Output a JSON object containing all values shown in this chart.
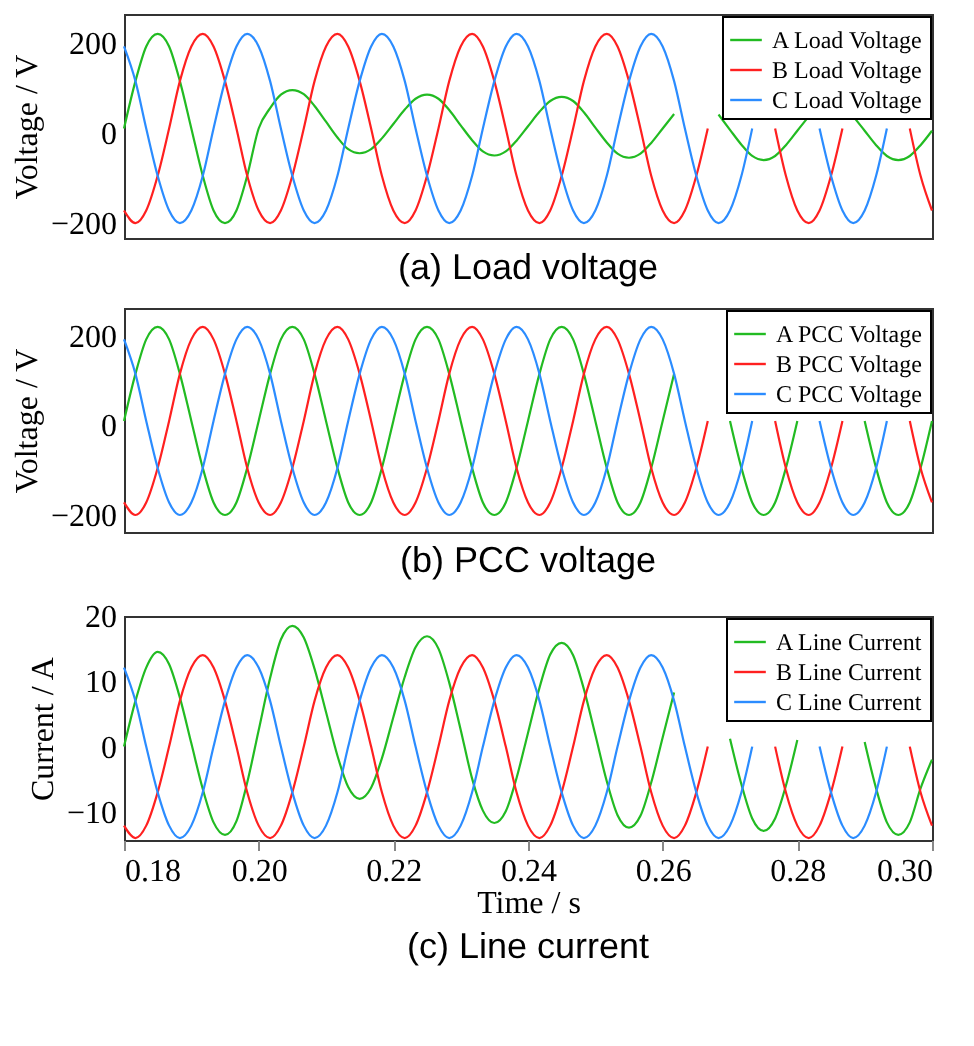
{
  "chart_data": [
    {
      "type": "line",
      "title": "(a) Load voltage",
      "ylabel": "Voltage / V",
      "xlim": [
        0.18,
        0.3
      ],
      "ylim": [
        -233,
        264
      ],
      "yticks": [
        -200,
        0,
        200
      ],
      "tick_labels": "y",
      "legend": "top right",
      "x": [
        0.18,
        0.1817,
        0.1833,
        0.185,
        0.1867,
        0.1883,
        0.19,
        0.1917,
        0.1933,
        0.195,
        0.1967,
        0.1983,
        0.2,
        0.2017,
        0.2033,
        0.205,
        0.2067,
        0.2083,
        0.21,
        0.2117,
        0.2133,
        0.215,
        0.2167,
        0.2183,
        0.22,
        0.2217,
        0.2233,
        0.225,
        0.2267,
        0.2283,
        0.23,
        0.2317,
        0.2333,
        0.235,
        0.2367,
        0.2383,
        0.24,
        0.2417,
        0.2433,
        0.245,
        0.2467,
        0.2483,
        0.25,
        0.2517,
        0.2533,
        0.255,
        0.2567,
        0.2583,
        0.26,
        0.2617,
        0.2633,
        0.265,
        0.2667,
        0.2683,
        0.27,
        0.2717,
        0.2733,
        0.275,
        0.2767,
        0.2783,
        0.28,
        0.2817,
        0.2833,
        0.285,
        0.2867,
        0.2883,
        0.29,
        0.2917,
        0.2933,
        0.295,
        0.2967,
        0.2983,
        0.3
      ],
      "series": [
        {
          "name": "A Load Voltage",
          "color": "#22bb22",
          "values": [
            10,
            115,
            192,
            220,
            192,
            115,
            10,
            -95,
            -172,
            -200,
            -172,
            -95,
            10,
            55,
            85,
            95,
            86,
            60,
            25,
            -10,
            -36,
            -45,
            -36,
            -12,
            20,
            52,
            76,
            85,
            76,
            51,
            17,
            -16,
            -41,
            -50,
            -41,
            -17,
            15,
            47,
            71,
            80,
            71,
            46,
            12,
            -21,
            -46,
            -55,
            -46,
            -22,
            10,
            42,
            null,
            null,
            null,
            41,
            7,
            -26,
            -51,
            -60,
            -51,
            -27,
            5,
            37,
            null,
            null,
            null,
            37,
            5,
            -27,
            -51,
            -60,
            -51,
            -27,
            5
          ]
        },
        {
          "name": "B Load Voltage",
          "color": "#ff2020",
          "values": [
            -172,
            -200,
            -172,
            -95,
            10,
            115,
            192,
            220,
            192,
            115,
            10,
            -95,
            -172,
            -200,
            -172,
            -95,
            10,
            115,
            192,
            220,
            192,
            115,
            10,
            -95,
            -172,
            -200,
            -172,
            -95,
            10,
            115,
            192,
            220,
            192,
            115,
            10,
            -95,
            -172,
            -200,
            -172,
            -95,
            10,
            115,
            192,
            220,
            192,
            115,
            10,
            -95,
            -172,
            -200,
            -172,
            -95,
            10,
            null,
            null,
            null,
            null,
            null,
            10,
            -95,
            -172,
            -200,
            -172,
            -95,
            10,
            null,
            null,
            null,
            null,
            null,
            10,
            -95,
            -172
          ]
        },
        {
          "name": "C Load Voltage",
          "color": "#2b8cff",
          "values": [
            192,
            115,
            10,
            -95,
            -172,
            -200,
            -172,
            -95,
            10,
            115,
            192,
            220,
            192,
            115,
            10,
            -95,
            -172,
            -200,
            -172,
            -95,
            10,
            115,
            192,
            220,
            192,
            115,
            10,
            -95,
            -172,
            -200,
            -172,
            -95,
            10,
            115,
            192,
            220,
            192,
            115,
            10,
            -95,
            -172,
            -200,
            -172,
            -95,
            10,
            115,
            192,
            220,
            192,
            115,
            10,
            -95,
            -172,
            -200,
            -172,
            -95,
            10,
            null,
            null,
            null,
            null,
            null,
            10,
            -95,
            -172,
            -200,
            -172,
            -95,
            10,
            null,
            null,
            null,
            null
          ]
        }
      ]
    },
    {
      "type": "line",
      "title": "(b) PCC voltage",
      "ylabel": "Voltage / V",
      "xlim": [
        0.18,
        0.3
      ],
      "ylim": [
        -238,
        262
      ],
      "yticks": [
        -200,
        0,
        200
      ],
      "tick_labels": "y",
      "legend": "top right",
      "x": [
        0.18,
        0.1817,
        0.1833,
        0.185,
        0.1867,
        0.1883,
        0.19,
        0.1917,
        0.1933,
        0.195,
        0.1967,
        0.1983,
        0.2,
        0.2017,
        0.2033,
        0.205,
        0.2067,
        0.2083,
        0.21,
        0.2117,
        0.2133,
        0.215,
        0.2167,
        0.2183,
        0.22,
        0.2217,
        0.2233,
        0.225,
        0.2267,
        0.2283,
        0.23,
        0.2317,
        0.2333,
        0.235,
        0.2367,
        0.2383,
        0.24,
        0.2417,
        0.2433,
        0.245,
        0.2467,
        0.2483,
        0.25,
        0.2517,
        0.2533,
        0.255,
        0.2567,
        0.2583,
        0.26,
        0.2617,
        0.2633,
        0.265,
        0.2667,
        0.2683,
        0.27,
        0.2717,
        0.2733,
        0.275,
        0.2767,
        0.2783,
        0.28,
        0.2817,
        0.2833,
        0.285,
        0.2867,
        0.2883,
        0.29,
        0.2917,
        0.2933,
        0.295,
        0.2967,
        0.2983,
        0.3
      ],
      "series": [
        {
          "name": "A PCC Voltage",
          "color": "#22bb22",
          "values": [
            10,
            115,
            192,
            220,
            192,
            115,
            10,
            -95,
            -172,
            -200,
            -172,
            -95,
            10,
            115,
            192,
            220,
            192,
            115,
            10,
            -95,
            -172,
            -200,
            -172,
            -95,
            10,
            115,
            192,
            220,
            192,
            115,
            10,
            -95,
            -172,
            -200,
            -172,
            -95,
            10,
            115,
            192,
            220,
            192,
            115,
            10,
            -95,
            -172,
            -200,
            -172,
            -95,
            10,
            115,
            null,
            null,
            null,
            null,
            10,
            -95,
            -172,
            -200,
            -172,
            -95,
            10,
            null,
            null,
            null,
            null,
            null,
            10,
            -95,
            -172,
            -200,
            -172,
            -95,
            10
          ]
        },
        {
          "name": "B PCC Voltage",
          "color": "#ff2020",
          "values": [
            -172,
            -200,
            -172,
            -95,
            10,
            115,
            192,
            220,
            192,
            115,
            10,
            -95,
            -172,
            -200,
            -172,
            -95,
            10,
            115,
            192,
            220,
            192,
            115,
            10,
            -95,
            -172,
            -200,
            -172,
            -95,
            10,
            115,
            192,
            220,
            192,
            115,
            10,
            -95,
            -172,
            -200,
            -172,
            -95,
            10,
            115,
            192,
            220,
            192,
            115,
            10,
            -95,
            -172,
            -200,
            -172,
            -95,
            10,
            null,
            null,
            null,
            null,
            null,
            10,
            -95,
            -172,
            -200,
            -172,
            -95,
            10,
            null,
            null,
            null,
            null,
            null,
            10,
            -95,
            -172
          ]
        },
        {
          "name": "C PCC Voltage",
          "color": "#2b8cff",
          "values": [
            192,
            115,
            10,
            -95,
            -172,
            -200,
            -172,
            -95,
            10,
            115,
            192,
            220,
            192,
            115,
            10,
            -95,
            -172,
            -200,
            -172,
            -95,
            10,
            115,
            192,
            220,
            192,
            115,
            10,
            -95,
            -172,
            -200,
            -172,
            -95,
            10,
            115,
            192,
            220,
            192,
            115,
            10,
            -95,
            -172,
            -200,
            -172,
            -95,
            10,
            115,
            192,
            220,
            192,
            115,
            10,
            -95,
            -172,
            -200,
            -172,
            -95,
            10,
            null,
            null,
            null,
            null,
            null,
            10,
            -95,
            -172,
            -200,
            -172,
            -95,
            10,
            null,
            null,
            null,
            null
          ]
        }
      ]
    },
    {
      "type": "line",
      "title": "(c) Line current",
      "xlabel": "Time / s",
      "ylabel": "Current / A",
      "xlim": [
        0.18,
        0.3
      ],
      "xticks": [
        0.18,
        {
          "value": 0.2,
          "label": "0.20"
        },
        0.22,
        0.24,
        0.26,
        0.28,
        {
          "value": 0.3,
          "label": "0.30"
        }
      ],
      "ylim": [
        -14.3,
        20
      ],
      "yticks": [
        -10,
        0,
        10,
        20
      ],
      "legend": "top right",
      "x": [
        0.18,
        0.1817,
        0.1833,
        0.185,
        0.1867,
        0.1883,
        0.19,
        0.1917,
        0.1933,
        0.195,
        0.1967,
        0.1983,
        0.2,
        0.2017,
        0.2033,
        0.205,
        0.2067,
        0.2083,
        0.21,
        0.2117,
        0.2133,
        0.215,
        0.2167,
        0.2183,
        0.22,
        0.2217,
        0.2233,
        0.225,
        0.2267,
        0.2283,
        0.23,
        0.2317,
        0.2333,
        0.235,
        0.2367,
        0.2383,
        0.24,
        0.2417,
        0.2433,
        0.245,
        0.2467,
        0.2483,
        0.25,
        0.2517,
        0.2533,
        0.255,
        0.2567,
        0.2583,
        0.26,
        0.2617,
        0.2633,
        0.265,
        0.2667,
        0.2683,
        0.27,
        0.2717,
        0.2733,
        0.275,
        0.2767,
        0.2783,
        0.28,
        0.2817,
        0.2833,
        0.285,
        0.2867,
        0.2883,
        0.29,
        0.2917,
        0.2933,
        0.295,
        0.2967,
        0.2983,
        0.3
      ],
      "series": [
        {
          "name": "A Line Current",
          "color": "#22bb22",
          "values": [
            0,
            7,
            12.1,
            14.5,
            12.6,
            7.5,
            0.5,
            -6.5,
            -11.6,
            -13.5,
            -11.4,
            -5.5,
            2.5,
            10.5,
            16.4,
            18.5,
            16.7,
            11.9,
            5.3,
            -1.4,
            -6.2,
            -8,
            -6.3,
            -1.8,
            4.5,
            10.7,
            15.2,
            16.9,
            15,
            9.8,
            2.6,
            -4.9,
            -9.8,
            -11.7,
            -9.9,
            -4.8,
            2.1,
            9,
            14.1,
            15.9,
            14,
            8.8,
            1.8,
            -5.3,
            -10.5,
            -12.4,
            -10.6,
            -5.5,
            1.4,
            8.3,
            null,
            null,
            null,
            null,
            1.2,
            -5.8,
            -11,
            -12.9,
            -11,
            -6,
            1,
            null,
            null,
            null,
            null,
            null,
            0.7,
            -6.4,
            -11.6,
            -13.5,
            -11.6,
            -6.4,
            -2
          ]
        },
        {
          "name": "B Line Current",
          "color": "#ff2020",
          "values": [
            -12.1,
            -14,
            -12.1,
            -7,
            0,
            7,
            12.1,
            14,
            12.1,
            7,
            0,
            -7,
            -12.1,
            -14,
            -12.1,
            -7,
            0,
            7,
            12.1,
            14,
            12.1,
            7,
            0,
            -7,
            -12.1,
            -14,
            -12.1,
            -7,
            0,
            7,
            12.1,
            14,
            12.1,
            7,
            0,
            -7,
            -12.1,
            -14,
            -12.1,
            -7,
            0,
            7,
            12.1,
            14,
            12.1,
            7,
            0,
            -7,
            -12.1,
            -14,
            -12.1,
            -7,
            0,
            null,
            null,
            null,
            null,
            null,
            0,
            -7,
            -12.1,
            -14,
            -12.1,
            -7,
            0,
            null,
            null,
            null,
            null,
            null,
            0,
            -7,
            -12.1
          ]
        },
        {
          "name": "C Line Current",
          "color": "#2b8cff",
          "values": [
            12.1,
            7,
            0,
            -7,
            -12.1,
            -14,
            -12.1,
            -7,
            0,
            7,
            12.1,
            14,
            12.1,
            7,
            0,
            -7,
            -12.1,
            -14,
            -12.1,
            -7,
            0,
            7,
            12.1,
            14,
            12.1,
            7,
            0,
            -7,
            -12.1,
            -14,
            -12.1,
            -7,
            0,
            7,
            12.1,
            14,
            12.1,
            7,
            0,
            -7,
            -12.1,
            -14,
            -12.1,
            -7,
            0,
            7,
            12.1,
            14,
            12.1,
            7,
            0,
            -7,
            -12.1,
            -14,
            -12.1,
            -7,
            0,
            null,
            null,
            null,
            null,
            null,
            0,
            -7,
            -12.1,
            -14,
            -12.1,
            -7,
            0,
            null,
            null,
            null,
            null
          ]
        }
      ]
    }
  ]
}
